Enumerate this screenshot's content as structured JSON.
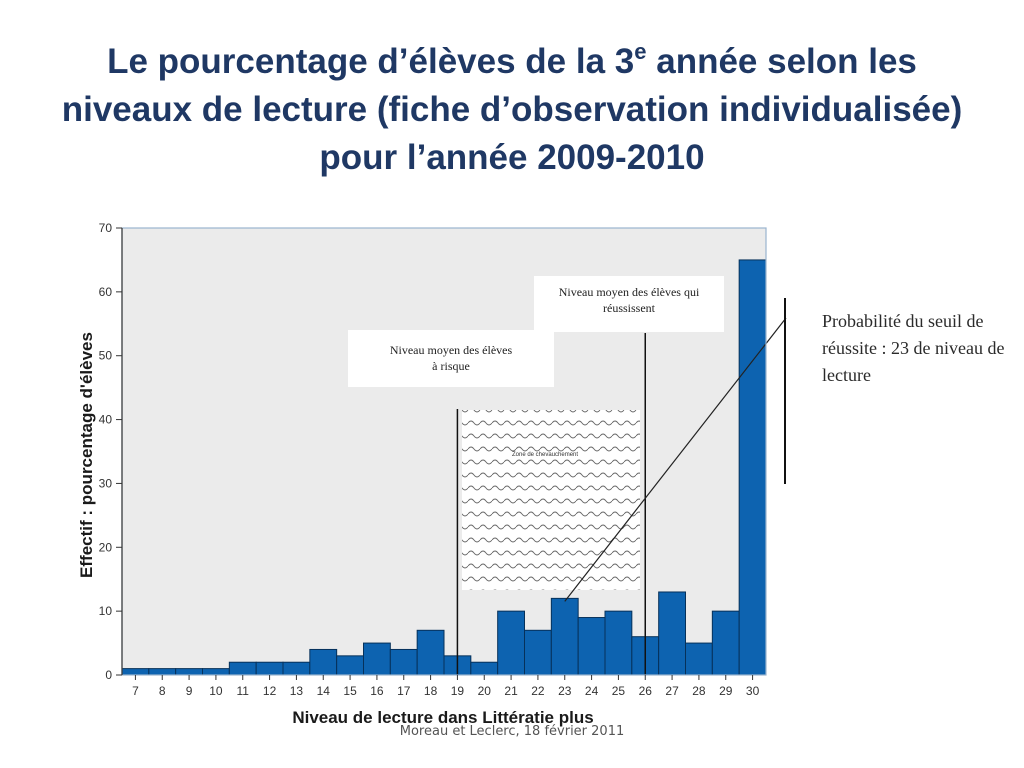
{
  "slide": {
    "title_part1": "Le pourcentage d’élèves de la 3",
    "title_sup": "e",
    "title_part2": " année selon les niveaux de lecture (fiche d’observation individualisée) pour l’année 2009-2010",
    "footer": "Moreau et Leclerc, 18 février 2011"
  },
  "annotations": {
    "risk_label": "Niveau moyen des élèves à risque",
    "success_label": "Niveau moyen des élèves qui réussissent",
    "zone_label": "Zone de chevauchement",
    "probability_label": "Probabilité du seuil de réussite : 23 de niveau de lecture"
  },
  "colors": {
    "bar": "#0d63b0",
    "bar_edge": "#06315a",
    "plot_bg": "#ebebeb",
    "axis_frame": "#9ab4cf",
    "title": "#1f3864"
  },
  "chart_data": {
    "type": "bar",
    "title": "",
    "xlabel": "Niveau de lecture  dans Littératie plus",
    "ylabel": "Effectif : pourcentage d'élèves",
    "categories": [
      "7",
      "8",
      "9",
      "10",
      "11",
      "12",
      "13",
      "14",
      "15",
      "16",
      "17",
      "18",
      "19",
      "20",
      "21",
      "22",
      "23",
      "24",
      "25",
      "26",
      "27",
      "28",
      "29",
      "30"
    ],
    "values": [
      1,
      1,
      1,
      1,
      2,
      2,
      2,
      4,
      3,
      5,
      4,
      7,
      3,
      2,
      10,
      7,
      12,
      9,
      10,
      6,
      13,
      5,
      10,
      65
    ],
    "ylim": [
      0,
      70
    ],
    "yticks": [
      "0",
      "10",
      "20",
      "30",
      "40",
      "50",
      "60",
      "70"
    ],
    "grid": false,
    "risk_mean_level": 19,
    "success_mean_level": 26,
    "threshold_level": 23
  }
}
